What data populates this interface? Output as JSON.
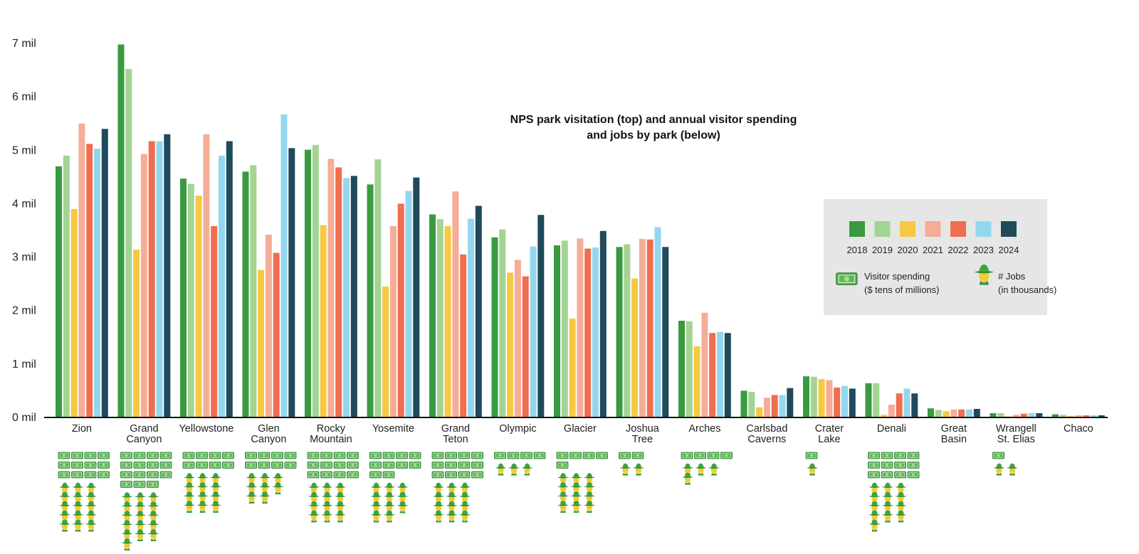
{
  "chart_data": {
    "type": "bar",
    "title_line1": "NPS park visitation (top) and annual visitor spending",
    "title_line2": "and jobs by park (below)",
    "y_ticks": [
      "0 mil",
      "1 mil",
      "2 mil",
      "3 mil",
      "4 mil",
      "5 mil",
      "6 mil",
      "7 mil"
    ],
    "ylim": [
      0,
      7.2
    ],
    "years": [
      "2018",
      "2019",
      "2020",
      "2021",
      "2022",
      "2023",
      "2024"
    ],
    "colors": [
      "#3a9a3f",
      "#a3d494",
      "#f7c844",
      "#f5ad97",
      "#ef6e4f",
      "#93d7ee",
      "#1f4a5c"
    ],
    "categories": [
      {
        "line1": "Zion",
        "line2": ""
      },
      {
        "line1": "Grand",
        "line2": "Canyon"
      },
      {
        "line1": "Yellowstone",
        "line2": ""
      },
      {
        "line1": "Glen",
        "line2": "Canyon"
      },
      {
        "line1": "Rocky",
        "line2": "Mountain"
      },
      {
        "line1": "Yosemite",
        "line2": ""
      },
      {
        "line1": "Grand",
        "line2": "Teton"
      },
      {
        "line1": "Olympic",
        "line2": ""
      },
      {
        "line1": "Glacier",
        "line2": ""
      },
      {
        "line1": "Joshua",
        "line2": "Tree"
      },
      {
        "line1": "Arches",
        "line2": ""
      },
      {
        "line1": "Carlsbad",
        "line2": "Caverns"
      },
      {
        "line1": "Crater",
        "line2": "Lake"
      },
      {
        "line1": "Denali",
        "line2": ""
      },
      {
        "line1": "Great",
        "line2": "Basin"
      },
      {
        "line1": "Wrangell",
        "line2": "St. Elias"
      },
      {
        "line1": "Chaco",
        "line2": ""
      }
    ],
    "series": [
      {
        "name": "2018",
        "values": [
          4.7,
          6.98,
          4.47,
          4.6,
          5.01,
          4.36,
          3.8,
          3.37,
          3.22,
          3.19,
          1.81,
          0.5,
          0.77,
          0.64,
          0.17,
          0.08,
          0.06
        ]
      },
      {
        "name": "2019",
        "values": [
          4.9,
          6.52,
          4.37,
          4.72,
          5.1,
          4.83,
          3.71,
          3.52,
          3.31,
          3.24,
          1.8,
          0.48,
          0.76,
          0.64,
          0.14,
          0.08,
          0.05
        ]
      },
      {
        "name": "2020",
        "values": [
          3.9,
          3.14,
          4.15,
          2.76,
          3.6,
          2.45,
          3.58,
          2.71,
          1.85,
          2.6,
          1.33,
          0.19,
          0.72,
          0.05,
          0.12,
          0.02,
          0.03
        ]
      },
      {
        "name": "2021",
        "values": [
          5.5,
          4.93,
          5.3,
          3.42,
          4.84,
          3.58,
          4.23,
          2.95,
          3.35,
          3.34,
          1.96,
          0.37,
          0.7,
          0.24,
          0.15,
          0.05,
          0.04
        ]
      },
      {
        "name": "2022",
        "values": [
          5.12,
          5.17,
          3.58,
          3.08,
          4.68,
          4.0,
          3.05,
          2.64,
          3.16,
          3.33,
          1.58,
          0.42,
          0.56,
          0.45,
          0.15,
          0.07,
          0.04
        ]
      },
      {
        "name": "2023",
        "values": [
          5.03,
          5.17,
          4.9,
          5.67,
          4.48,
          4.24,
          3.72,
          3.2,
          3.18,
          3.56,
          1.6,
          0.42,
          0.59,
          0.54,
          0.15,
          0.08,
          0.04
        ]
      },
      {
        "name": "2024",
        "values": [
          5.4,
          5.3,
          5.17,
          5.04,
          4.52,
          4.49,
          3.96,
          3.79,
          3.49,
          3.19,
          1.58,
          0.55,
          0.54,
          0.45,
          0.16,
          0.08,
          0.04
        ]
      }
    ],
    "pictograms": {
      "spending_icon": "money-bill-icon",
      "jobs_icon": "ranger-hat-icon",
      "spending_units": [
        12,
        15,
        8,
        8,
        12,
        10,
        12,
        4,
        5,
        2,
        4,
        0,
        1,
        12,
        0,
        1,
        0
      ],
      "jobs_units": [
        15,
        16,
        12,
        8,
        12,
        11,
        12,
        3,
        12,
        2,
        4,
        0,
        1,
        13,
        0,
        2,
        0
      ]
    },
    "legend": {
      "spending_line1": "Visitor spending",
      "spending_line2": "($ tens of millions)",
      "jobs_line1": "# Jobs",
      "jobs_line2": "(in thousands)"
    }
  }
}
